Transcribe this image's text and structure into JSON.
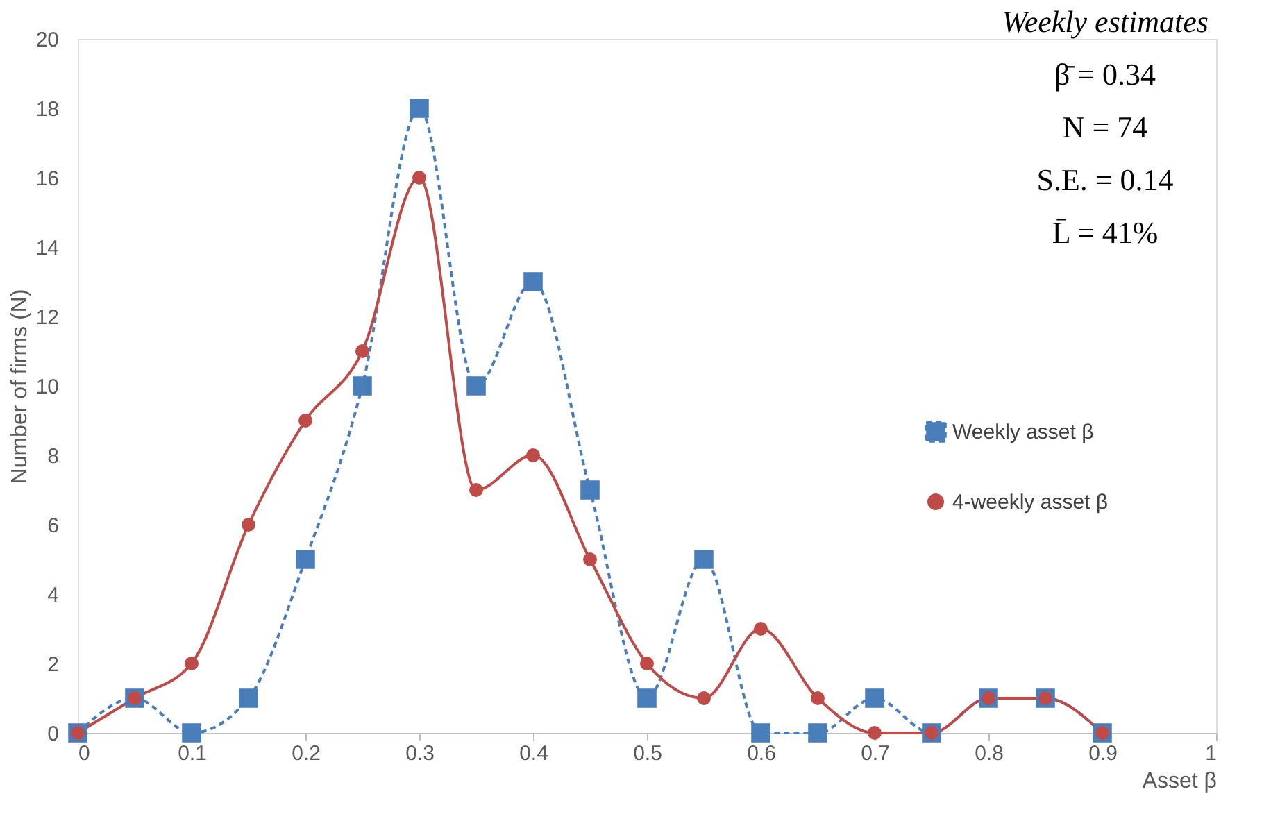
{
  "chart_data": {
    "type": "line",
    "xlabel": "Asset β",
    "ylabel": "Number of firms (N)",
    "x": [
      0,
      0.05,
      0.1,
      0.15,
      0.2,
      0.25,
      0.3,
      0.35,
      0.4,
      0.45,
      0.5,
      0.55,
      0.6,
      0.65,
      0.7,
      0.75,
      0.8,
      0.85,
      0.9
    ],
    "series": [
      {
        "name": "Weekly asset β",
        "color": "#4a7ebb",
        "marker": "square",
        "line_style": "dashed",
        "values": [
          0,
          1,
          0,
          1,
          5,
          10,
          18,
          10,
          13,
          7,
          1,
          5,
          0,
          0,
          1,
          0,
          1,
          1,
          0
        ]
      },
      {
        "name": "4-weekly asset β",
        "color": "#be4b48",
        "marker": "circle",
        "line_style": "solid",
        "values": [
          0,
          1,
          2,
          6,
          9,
          11,
          16,
          7,
          8,
          5,
          2,
          1,
          3,
          1,
          0,
          0,
          1,
          1,
          0
        ]
      }
    ],
    "xlim": [
      0,
      1
    ],
    "xticks": [
      0,
      0.1,
      0.2,
      0.3,
      0.4,
      0.5,
      0.6,
      0.7,
      0.8,
      0.9,
      1
    ],
    "ylim": [
      0,
      20
    ],
    "yticks": [
      0,
      2,
      4,
      6,
      8,
      10,
      12,
      14,
      16,
      18,
      20
    ],
    "grid": false,
    "legend": "right",
    "annotations": [
      "Weekly estimates",
      "β̄ = 0.34",
      "N = 74",
      "S.E. = 0.14",
      "L̄ = 41%"
    ]
  }
}
